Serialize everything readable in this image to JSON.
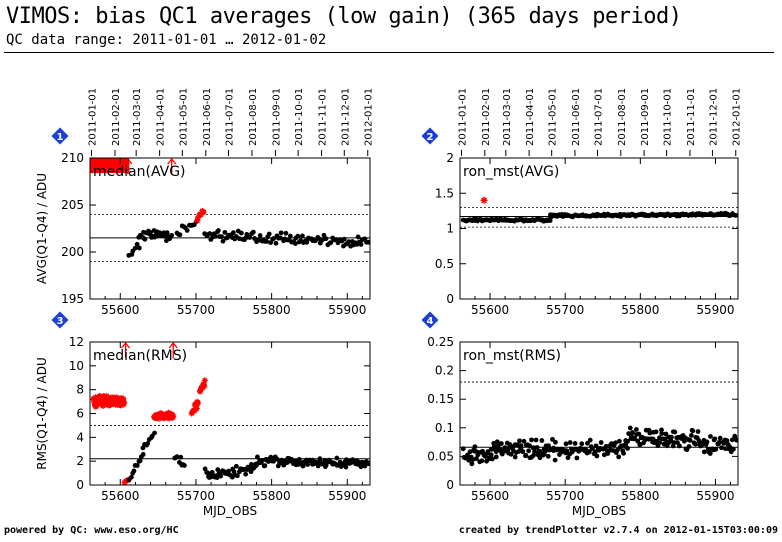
{
  "header": {
    "title": "VIMOS: bias QC1 averages (low gain) (365 days period)",
    "subtitle": "QC data range: 2011-01-01 … 2012-01-02"
  },
  "footer": {
    "left": "powered by QC: www.eso.org/HC",
    "right": "created by trendPlotter v2.7.4 on 2012-01-15T03:00:09"
  },
  "colors": {
    "points": "#000000",
    "outliers": "#ff0000",
    "badge": "#1a3fd6",
    "reference_line": "#000000"
  },
  "chart_data": [
    {
      "panel": "1",
      "type": "scatter",
      "label": "median(AVG)",
      "ylabel": "AVG(Q1-Q4) / ADU",
      "xlabel": "",
      "xlim": [
        55560,
        55930
      ],
      "ylim": [
        195,
        210
      ],
      "xticks": [
        55600,
        55700,
        55800,
        55900
      ],
      "yticks": [
        195,
        200,
        205,
        210
      ],
      "date_ticks": [
        "2011-01-01",
        "2011-02-01",
        "2011-03-01",
        "2011-04-01",
        "2011-05-01",
        "2011-06-01",
        "2011-07-01",
        "2011-08-01",
        "2011-09-01",
        "2011-10-01",
        "2011-11-01",
        "2011-12-01",
        "2012-01-01"
      ],
      "date_mjd": [
        55562,
        55593,
        55621,
        55652,
        55682,
        55713,
        55743,
        55774,
        55805,
        55835,
        55866,
        55896,
        55927
      ],
      "ref_line": 201.5,
      "dotted_lines": [
        199.0,
        204.0
      ],
      "outlier_arrows": [
        55610,
        55668
      ],
      "outlier_band": {
        "x": [
          55560,
          55612
        ],
        "y": [
          208.5,
          210
        ]
      },
      "segments": [
        {
          "x": [
            55612,
            55625
          ],
          "y": [
            199.8,
            200.6
          ],
          "n": 6,
          "spread": 0.6,
          "color": "black"
        },
        {
          "x": [
            55625,
            55668
          ],
          "y": [
            201.8,
            201.8
          ],
          "n": 30,
          "spread": 0.7,
          "color": "black"
        },
        {
          "x": [
            55675,
            55700
          ],
          "y": [
            202.0,
            203.2
          ],
          "n": 12,
          "spread": 0.5,
          "color": "black"
        },
        {
          "x": [
            55702,
            55710
          ],
          "y": [
            203.5,
            204.4
          ],
          "n": 8,
          "spread": 0.3,
          "color": "red"
        },
        {
          "x": [
            55712,
            55928
          ],
          "y": [
            201.8,
            201.0
          ],
          "n": 110,
          "spread": 0.7,
          "color": "black"
        }
      ]
    },
    {
      "panel": "2",
      "type": "scatter",
      "label": "ron_mst(AVG)",
      "ylabel": "",
      "xlabel": "",
      "xlim": [
        55560,
        55930
      ],
      "ylim": [
        0,
        2
      ],
      "xticks": [
        55600,
        55700,
        55800,
        55900
      ],
      "yticks": [
        0,
        0.5,
        1,
        1.5,
        2
      ],
      "date_ticks": [
        "2011-01-01",
        "2011-02-01",
        "2011-03-01",
        "2011-04-01",
        "2011-05-01",
        "2011-06-01",
        "2011-07-01",
        "2011-08-01",
        "2011-09-01",
        "2011-10-01",
        "2011-11-01",
        "2011-12-01",
        "2012-01-01"
      ],
      "date_mjd": [
        55562,
        55593,
        55621,
        55652,
        55682,
        55713,
        55743,
        55774,
        55805,
        55835,
        55866,
        55896,
        55927
      ],
      "ref_line": 1.17,
      "dotted_lines": [
        1.02,
        1.3
      ],
      "outlier_arrows": [],
      "outlier_points": [
        {
          "x": 55592,
          "y": 1.4
        }
      ],
      "segments": [
        {
          "x": [
            55565,
            55680
          ],
          "y": [
            1.12,
            1.12
          ],
          "n": 70,
          "spread": 0.02,
          "color": "black"
        },
        {
          "x": [
            55680,
            55928
          ],
          "y": [
            1.18,
            1.2
          ],
          "n": 150,
          "spread": 0.02,
          "color": "black"
        }
      ]
    },
    {
      "panel": "3",
      "type": "scatter",
      "label": "median(RMS)",
      "ylabel": "RMS(Q1-Q4) / ADU",
      "xlabel": "MJD_OBS",
      "xlim": [
        55560,
        55930
      ],
      "ylim": [
        0,
        12
      ],
      "xticks": [
        55600,
        55700,
        55800,
        55900
      ],
      "yticks": [
        0,
        2,
        4,
        6,
        8,
        10,
        12
      ],
      "ref_line": 2.2,
      "dotted_lines": [
        5.0
      ],
      "outlier_arrows": [
        55607,
        55670
      ],
      "segments": [
        {
          "x": [
            55565,
            55605
          ],
          "y": [
            7.0,
            7.0
          ],
          "n": 120,
          "spread": 0.5,
          "color": "red"
        },
        {
          "x": [
            55605,
            55612
          ],
          "y": [
            0.2,
            0.4
          ],
          "n": 4,
          "spread": 0.1,
          "color": "red"
        },
        {
          "x": [
            55612,
            55630
          ],
          "y": [
            0.5,
            2.5
          ],
          "n": 10,
          "spread": 0.3,
          "color": "black"
        },
        {
          "x": [
            55630,
            55645
          ],
          "y": [
            3.0,
            4.4
          ],
          "n": 8,
          "spread": 0.3,
          "color": "black"
        },
        {
          "x": [
            55645,
            55670
          ],
          "y": [
            5.8,
            5.8
          ],
          "n": 60,
          "spread": 0.3,
          "color": "red"
        },
        {
          "x": [
            55672,
            55685
          ],
          "y": [
            2.2,
            1.6
          ],
          "n": 8,
          "spread": 0.5,
          "color": "black"
        },
        {
          "x": [
            55695,
            55703
          ],
          "y": [
            5.8,
            7.0
          ],
          "n": 12,
          "spread": 0.5,
          "color": "red"
        },
        {
          "x": [
            55705,
            55712
          ],
          "y": [
            7.8,
            8.6
          ],
          "n": 10,
          "spread": 0.4,
          "color": "red"
        },
        {
          "x": [
            55712,
            55720
          ],
          "y": [
            1.2,
            0.4
          ],
          "n": 6,
          "spread": 0.4,
          "color": "black"
        },
        {
          "x": [
            55720,
            55780
          ],
          "y": [
            0.7,
            1.5
          ],
          "n": 40,
          "spread": 0.5,
          "color": "black"
        },
        {
          "x": [
            55780,
            55928
          ],
          "y": [
            2.0,
            1.8
          ],
          "n": 110,
          "spread": 0.5,
          "color": "black"
        }
      ]
    },
    {
      "panel": "4",
      "type": "scatter",
      "label": "ron_mst(RMS)",
      "ylabel": "",
      "xlabel": "MJD_OBS",
      "xlim": [
        55560,
        55930
      ],
      "ylim": [
        0,
        0.25
      ],
      "xticks": [
        55600,
        55700,
        55800,
        55900
      ],
      "yticks": [
        0,
        0.05,
        0.1,
        0.15,
        0.2,
        0.25
      ],
      "ref_line": 0.066,
      "dotted_lines": [
        0.18
      ],
      "outlier_arrows": [],
      "segments": [
        {
          "x": [
            55565,
            55610
          ],
          "y": [
            0.05,
            0.055
          ],
          "n": 45,
          "spread": 0.02,
          "color": "black"
        },
        {
          "x": [
            55610,
            55700
          ],
          "y": [
            0.065,
            0.06
          ],
          "n": 80,
          "spread": 0.02,
          "color": "black"
        },
        {
          "x": [
            55700,
            55780
          ],
          "y": [
            0.06,
            0.065
          ],
          "n": 60,
          "spread": 0.018,
          "color": "black"
        },
        {
          "x": [
            55780,
            55880
          ],
          "y": [
            0.085,
            0.08
          ],
          "n": 85,
          "spread": 0.022,
          "color": "black"
        },
        {
          "x": [
            55880,
            55928
          ],
          "y": [
            0.07,
            0.07
          ],
          "n": 35,
          "spread": 0.02,
          "color": "black"
        }
      ]
    }
  ]
}
